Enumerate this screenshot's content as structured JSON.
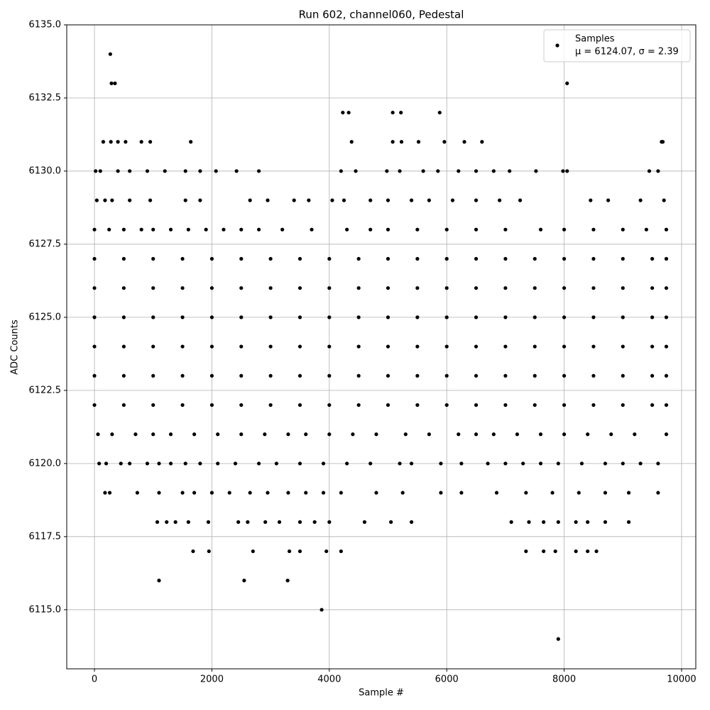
{
  "chart_data": {
    "type": "scatter",
    "title": "Run 602, channel060, Pedestal",
    "x_label": "Sample #",
    "y_label": "ADC Counts",
    "xlim": [
      -472,
      10242
    ],
    "ylim": [
      6112.98,
      6135
    ],
    "xticks": [
      0,
      2000,
      4000,
      6000,
      8000,
      10000
    ],
    "yticks": [
      {
        "value": 6115,
        "label": "6115.0"
      },
      {
        "value": 6117.5,
        "label": "6117.5"
      },
      {
        "value": 6120,
        "label": "6120.0"
      },
      {
        "value": 6122.5,
        "label": "6122.5"
      },
      {
        "value": 6125,
        "label": "6125.0"
      },
      {
        "value": 6127.5,
        "label": "6127.5"
      },
      {
        "value": 6130,
        "label": "6130.0"
      },
      {
        "value": 6132.5,
        "label": "6132.5"
      },
      {
        "value": 6135,
        "label": "6135.0"
      }
    ],
    "grid": true,
    "legend": "upper right",
    "legend_note": "μ = 6124.07, σ = 2.39",
    "series": [
      {
        "name": "Samples",
        "color": "#000000",
        "x": [
          270,
          290,
          350,
          1100,
          2550,
          3290,
          3870,
          7900,
          8050,
          4230,
          4330,
          5080,
          5220,
          5880,
          9660,
          9680,
          1640,
          150,
          0,
          500,
          1000,
          1500,
          2000,
          2500,
          3000,
          3500,
          4000,
          4500,
          5000,
          5500,
          6000,
          6500,
          7000,
          7500,
          8000,
          8500,
          9000,
          9500,
          9740,
          0,
          500,
          1000,
          1500,
          2000,
          2500,
          3000,
          3500,
          4000,
          4500,
          5000,
          5500,
          6000,
          6500,
          7000,
          7500,
          8000,
          8500,
          9000,
          9500,
          9740,
          0,
          500,
          1000,
          1500,
          2000,
          2500,
          3000,
          3500,
          4000,
          4500,
          5000,
          5500,
          6000,
          6500,
          7000,
          7500,
          8000,
          8500,
          9000,
          9500,
          9740,
          0,
          500,
          1000,
          1500,
          2000,
          2500,
          3000,
          3500,
          4000,
          4500,
          5000,
          5500,
          6000,
          6500,
          7000,
          7500,
          8000,
          8500,
          9000,
          9500,
          9740,
          0,
          500,
          1000,
          1500,
          2000,
          2500,
          3000,
          3500,
          4000,
          4500,
          5000,
          5500,
          6000,
          6500,
          7000,
          7500,
          8000,
          8500,
          9000,
          9500,
          9740,
          0,
          500,
          1000,
          1500,
          2000,
          2500,
          3000,
          3500,
          4000,
          4500,
          5000,
          5500,
          6000,
          6500,
          7000,
          7500,
          8000,
          8500,
          9000,
          9500,
          9740,
          0,
          250,
          500,
          800,
          1000,
          1300,
          1600,
          1900,
          2200,
          2500,
          2800,
          3200,
          3700,
          4300,
          4700,
          5000,
          5500,
          6000,
          6500,
          7000,
          7600,
          8000,
          8500,
          9000,
          9400,
          9740,
          60,
          300,
          700,
          1000,
          1300,
          1700,
          2100,
          2500,
          2900,
          3300,
          3600,
          4000,
          4400,
          4800,
          5300,
          5700,
          6200,
          6500,
          6800,
          7200,
          7600,
          8000,
          8400,
          8800,
          9200,
          9740,
          80,
          200,
          450,
          600,
          900,
          1100,
          1300,
          1550,
          1800,
          2100,
          2400,
          2800,
          3100,
          3500,
          3900,
          4300,
          4700,
          5200,
          5400,
          5900,
          6250,
          6700,
          7000,
          7300,
          7600,
          7900,
          8300,
          8700,
          9000,
          9300,
          9600,
          180,
          260,
          730,
          1100,
          1500,
          1700,
          2000,
          2300,
          2650,
          2950,
          3300,
          3600,
          3900,
          4200,
          4800,
          5250,
          5900,
          6250,
          6850,
          7350,
          7800,
          8250,
          8700,
          9100,
          9600,
          40,
          180,
          300,
          600,
          950,
          1550,
          1800,
          2650,
          2950,
          3400,
          3650,
          4050,
          4250,
          4700,
          5000,
          5400,
          5700,
          6100,
          6500,
          6900,
          7250,
          8450,
          8750,
          9300,
          9700,
          1070,
          1230,
          1380,
          1600,
          1940,
          2450,
          2610,
          2910,
          3150,
          3500,
          3750,
          4000,
          4600,
          5050,
          5400,
          7100,
          7400,
          7650,
          7900,
          8200,
          8400,
          8700,
          9100,
          1680,
          1950,
          2700,
          3320,
          3500,
          3950,
          4200,
          7350,
          7650,
          7850,
          8200,
          8400,
          8550,
          20,
          100,
          400,
          600,
          900,
          1200,
          1550,
          1800,
          2070,
          2420,
          2800,
          4200,
          4450,
          4980,
          5200,
          5600,
          5850,
          6200,
          6500,
          6800,
          7070,
          7520,
          7980,
          8050,
          9450,
          9600,
          280,
          400,
          530,
          800,
          950,
          4380,
          5080,
          5230,
          5520,
          5960,
          6300,
          6600
        ],
        "values": [
          6134,
          6133,
          6133,
          6116,
          6116,
          6116,
          6115,
          6114,
          6133,
          6132,
          6132,
          6132,
          6132,
          6132,
          6131,
          6131,
          6131,
          6131,
          6122,
          6122,
          6122,
          6122,
          6122,
          6122,
          6122,
          6122,
          6122,
          6122,
          6122,
          6122,
          6122,
          6122,
          6122,
          6122,
          6122,
          6122,
          6122,
          6122,
          6122,
          6123,
          6123,
          6123,
          6123,
          6123,
          6123,
          6123,
          6123,
          6123,
          6123,
          6123,
          6123,
          6123,
          6123,
          6123,
          6123,
          6123,
          6123,
          6123,
          6123,
          6123,
          6124,
          6124,
          6124,
          6124,
          6124,
          6124,
          6124,
          6124,
          6124,
          6124,
          6124,
          6124,
          6124,
          6124,
          6124,
          6124,
          6124,
          6124,
          6124,
          6124,
          6124,
          6125,
          6125,
          6125,
          6125,
          6125,
          6125,
          6125,
          6125,
          6125,
          6125,
          6125,
          6125,
          6125,
          6125,
          6125,
          6125,
          6125,
          6125,
          6125,
          6125,
          6125,
          6126,
          6126,
          6126,
          6126,
          6126,
          6126,
          6126,
          6126,
          6126,
          6126,
          6126,
          6126,
          6126,
          6126,
          6126,
          6126,
          6126,
          6126,
          6126,
          6126,
          6126,
          6127,
          6127,
          6127,
          6127,
          6127,
          6127,
          6127,
          6127,
          6127,
          6127,
          6127,
          6127,
          6127,
          6127,
          6127,
          6127,
          6127,
          6127,
          6127,
          6127,
          6127,
          6128,
          6128,
          6128,
          6128,
          6128,
          6128,
          6128,
          6128,
          6128,
          6128,
          6128,
          6128,
          6128,
          6128,
          6128,
          6128,
          6128,
          6128,
          6128,
          6128,
          6128,
          6128,
          6128,
          6128,
          6128,
          6128,
          6121,
          6121,
          6121,
          6121,
          6121,
          6121,
          6121,
          6121,
          6121,
          6121,
          6121,
          6121,
          6121,
          6121,
          6121,
          6121,
          6121,
          6121,
          6121,
          6121,
          6121,
          6121,
          6121,
          6121,
          6121,
          6121,
          6120,
          6120,
          6120,
          6120,
          6120,
          6120,
          6120,
          6120,
          6120,
          6120,
          6120,
          6120,
          6120,
          6120,
          6120,
          6120,
          6120,
          6120,
          6120,
          6120,
          6120,
          6120,
          6120,
          6120,
          6120,
          6120,
          6120,
          6120,
          6120,
          6120,
          6120,
          6119,
          6119,
          6119,
          6119,
          6119,
          6119,
          6119,
          6119,
          6119,
          6119,
          6119,
          6119,
          6119,
          6119,
          6119,
          6119,
          6119,
          6119,
          6119,
          6119,
          6119,
          6119,
          6119,
          6119,
          6119,
          6129,
          6129,
          6129,
          6129,
          6129,
          6129,
          6129,
          6129,
          6129,
          6129,
          6129,
          6129,
          6129,
          6129,
          6129,
          6129,
          6129,
          6129,
          6129,
          6129,
          6129,
          6129,
          6129,
          6129,
          6129,
          6118,
          6118,
          6118,
          6118,
          6118,
          6118,
          6118,
          6118,
          6118,
          6118,
          6118,
          6118,
          6118,
          6118,
          6118,
          6118,
          6118,
          6118,
          6118,
          6118,
          6118,
          6118,
          6118,
          6117,
          6117,
          6117,
          6117,
          6117,
          6117,
          6117,
          6117,
          6117,
          6117,
          6117,
          6117,
          6117,
          6130,
          6130,
          6130,
          6130,
          6130,
          6130,
          6130,
          6130,
          6130,
          6130,
          6130,
          6130,
          6130,
          6130,
          6130,
          6130,
          6130,
          6130,
          6130,
          6130,
          6130,
          6130,
          6130,
          6130,
          6130,
          6130,
          6131,
          6131,
          6131,
          6131,
          6131,
          6131,
          6131,
          6131,
          6131,
          6131,
          6131,
          6131
        ]
      }
    ]
  }
}
